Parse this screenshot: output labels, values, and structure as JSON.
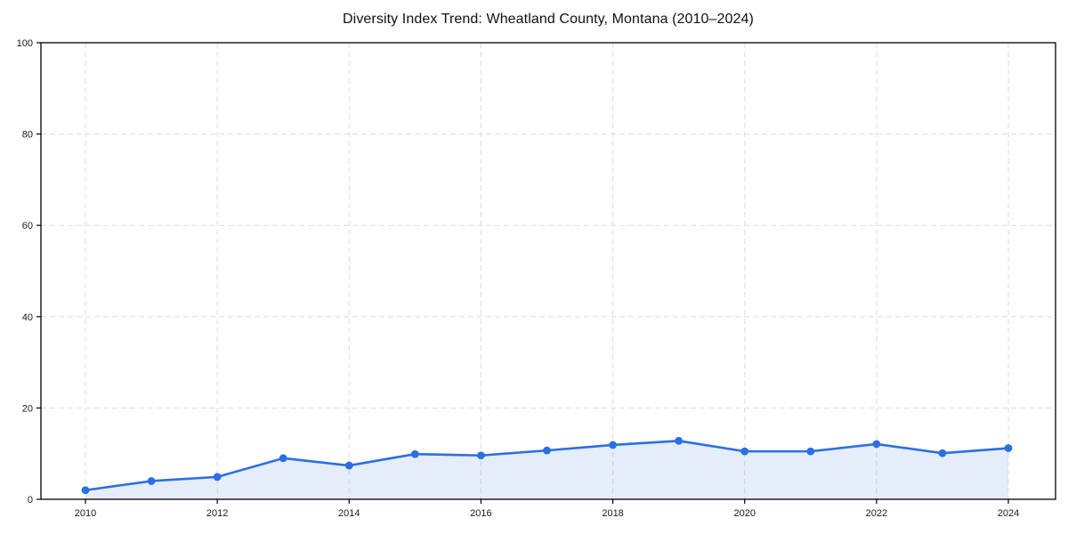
{
  "chart_data": {
    "type": "line",
    "title": "Diversity Index Trend: Wheatland County, Montana (2010–2024)",
    "x": [
      2010,
      2011,
      2012,
      2013,
      2014,
      2015,
      2016,
      2017,
      2018,
      2019,
      2020,
      2021,
      2022,
      2023,
      2024
    ],
    "series": [
      {
        "name": "Diversity Index",
        "values": [
          2.0,
          4.0,
          4.9,
          9.0,
          7.4,
          9.9,
          9.6,
          10.7,
          11.9,
          12.8,
          10.5,
          10.5,
          12.1,
          10.1,
          11.2
        ]
      }
    ],
    "xticks": [
      2010,
      2012,
      2014,
      2016,
      2018,
      2020,
      2022,
      2024
    ],
    "yticks": [
      0,
      20,
      40,
      60,
      80,
      100
    ],
    "ylim": [
      0,
      100
    ],
    "xlabel": "",
    "ylabel": "",
    "grid": true,
    "grid_style": "dashed",
    "legend": "none",
    "marker": "circle",
    "fill_under_line": true,
    "colors": {
      "line": "#2b6fe2",
      "marker": "#2b6fe2",
      "fill": "#2b6fe2",
      "fill_opacity": 0.12,
      "grid": "#dcdcdc",
      "frame": "#000000",
      "text": "#1a1a1a",
      "background": "#ffffff"
    }
  }
}
